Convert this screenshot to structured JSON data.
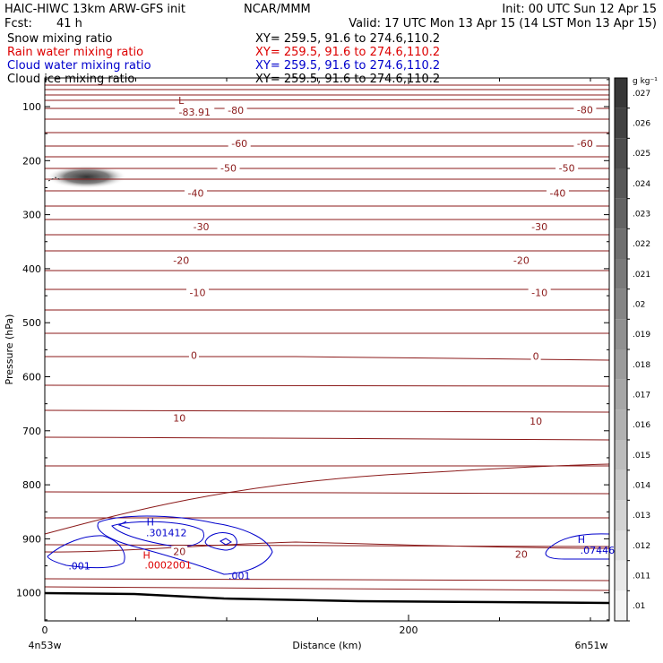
{
  "header": {
    "model": "HAIC-HIWC 13km ARW-GFS init",
    "org": "NCAR/MMM",
    "init": "Init: 00 UTC Sun 12 Apr 15",
    "fcst_label": "Fcst:",
    "fcst_value": "41 h",
    "valid": "Valid: 17 UTC Mon 13 Apr 15 (14 LST Mon 13 Apr 15)"
  },
  "fields": [
    {
      "name": "Snow mixing ratio",
      "xy": "XY= 259.5, 91.6 to 274.6,110.2",
      "color": "#000000"
    },
    {
      "name": "Rain water mixing ratio",
      "xy": "XY= 259.5, 91.6 to 274.6,110.2",
      "color": "#dd0000"
    },
    {
      "name": "Cloud water mixing ratio",
      "xy": "XY= 259.5, 91.6 to 274.6,110.2",
      "color": "#0000cc"
    },
    {
      "name": "Cloud ice mixing ratio",
      "xy": "XY= 259.5, 91.6 to 274.6,110.2",
      "color": "#000000"
    }
  ],
  "chart_data": {
    "type": "line",
    "xlabel": "Distance (km)",
    "ylabel": "Pressure (hPa)",
    "x_ticks": [
      0,
      200
    ],
    "xlim": [
      0,
      310
    ],
    "y_ticks": [
      100,
      200,
      300,
      400,
      500,
      600,
      700,
      800,
      900,
      1000
    ],
    "ylim": [
      40,
      1050
    ],
    "x_endpoint_labels": [
      "4n53w",
      "6n51w"
    ],
    "temperature_contour_labels": [
      {
        "value": "-80",
        "x": 105,
        "p": 107
      },
      {
        "value": "-80",
        "x": 297,
        "p": 106
      },
      {
        "value": "-60",
        "x": 107,
        "p": 168
      },
      {
        "value": "-60",
        "x": 297,
        "p": 168
      },
      {
        "value": "-50",
        "x": 101,
        "p": 214
      },
      {
        "value": "-50",
        "x": 287,
        "p": 214
      },
      {
        "value": "-40",
        "x": 83,
        "p": 260
      },
      {
        "value": "-40",
        "x": 282,
        "p": 260
      },
      {
        "value": "-30",
        "x": 86,
        "p": 322
      },
      {
        "value": "-30",
        "x": 272,
        "p": 322
      },
      {
        "value": "-20",
        "x": 75,
        "p": 384
      },
      {
        "value": "-20",
        "x": 262,
        "p": 384
      },
      {
        "value": "-10",
        "x": 84,
        "p": 444
      },
      {
        "value": "-10",
        "x": 272,
        "p": 444
      },
      {
        "value": "0",
        "x": 82,
        "p": 560
      },
      {
        "value": "0",
        "x": 270,
        "p": 562
      },
      {
        "value": "10",
        "x": 74,
        "p": 676
      },
      {
        "value": "10",
        "x": 270,
        "p": 682
      },
      {
        "value": "20",
        "x": 74,
        "p": 923
      },
      {
        "value": "20",
        "x": 262,
        "p": 928
      }
    ],
    "temperature_min": {
      "symbol": "L",
      "value": "-83.91",
      "x": 75,
      "p": 88
    },
    "cloud_water_maxima": [
      {
        "symbol": "H",
        "value": ".301412",
        "x": 58,
        "p": 875
      },
      {
        "symbol": "H",
        "value": ".07446",
        "x": 295,
        "p": 908
      }
    ],
    "cloud_water_contour_labels": [
      {
        "value": ".001",
        "x": 19,
        "p": 950
      },
      {
        "value": ".001",
        "x": 107,
        "p": 968
      }
    ],
    "rain_water_max": {
      "symbol": "H",
      "value": ".0002001",
      "x": 56,
      "p": 930
    },
    "colorbar": {
      "unit": "g kg⁻¹",
      "values": [
        ".01",
        ".011",
        ".012",
        ".013",
        ".014",
        ".015",
        ".016",
        ".017",
        ".018",
        ".019",
        ".02",
        ".021",
        ".022",
        ".023",
        ".024",
        ".025",
        ".026",
        ".027"
      ]
    },
    "snow_max_region": {
      "x": 23,
      "p": 230
    }
  }
}
